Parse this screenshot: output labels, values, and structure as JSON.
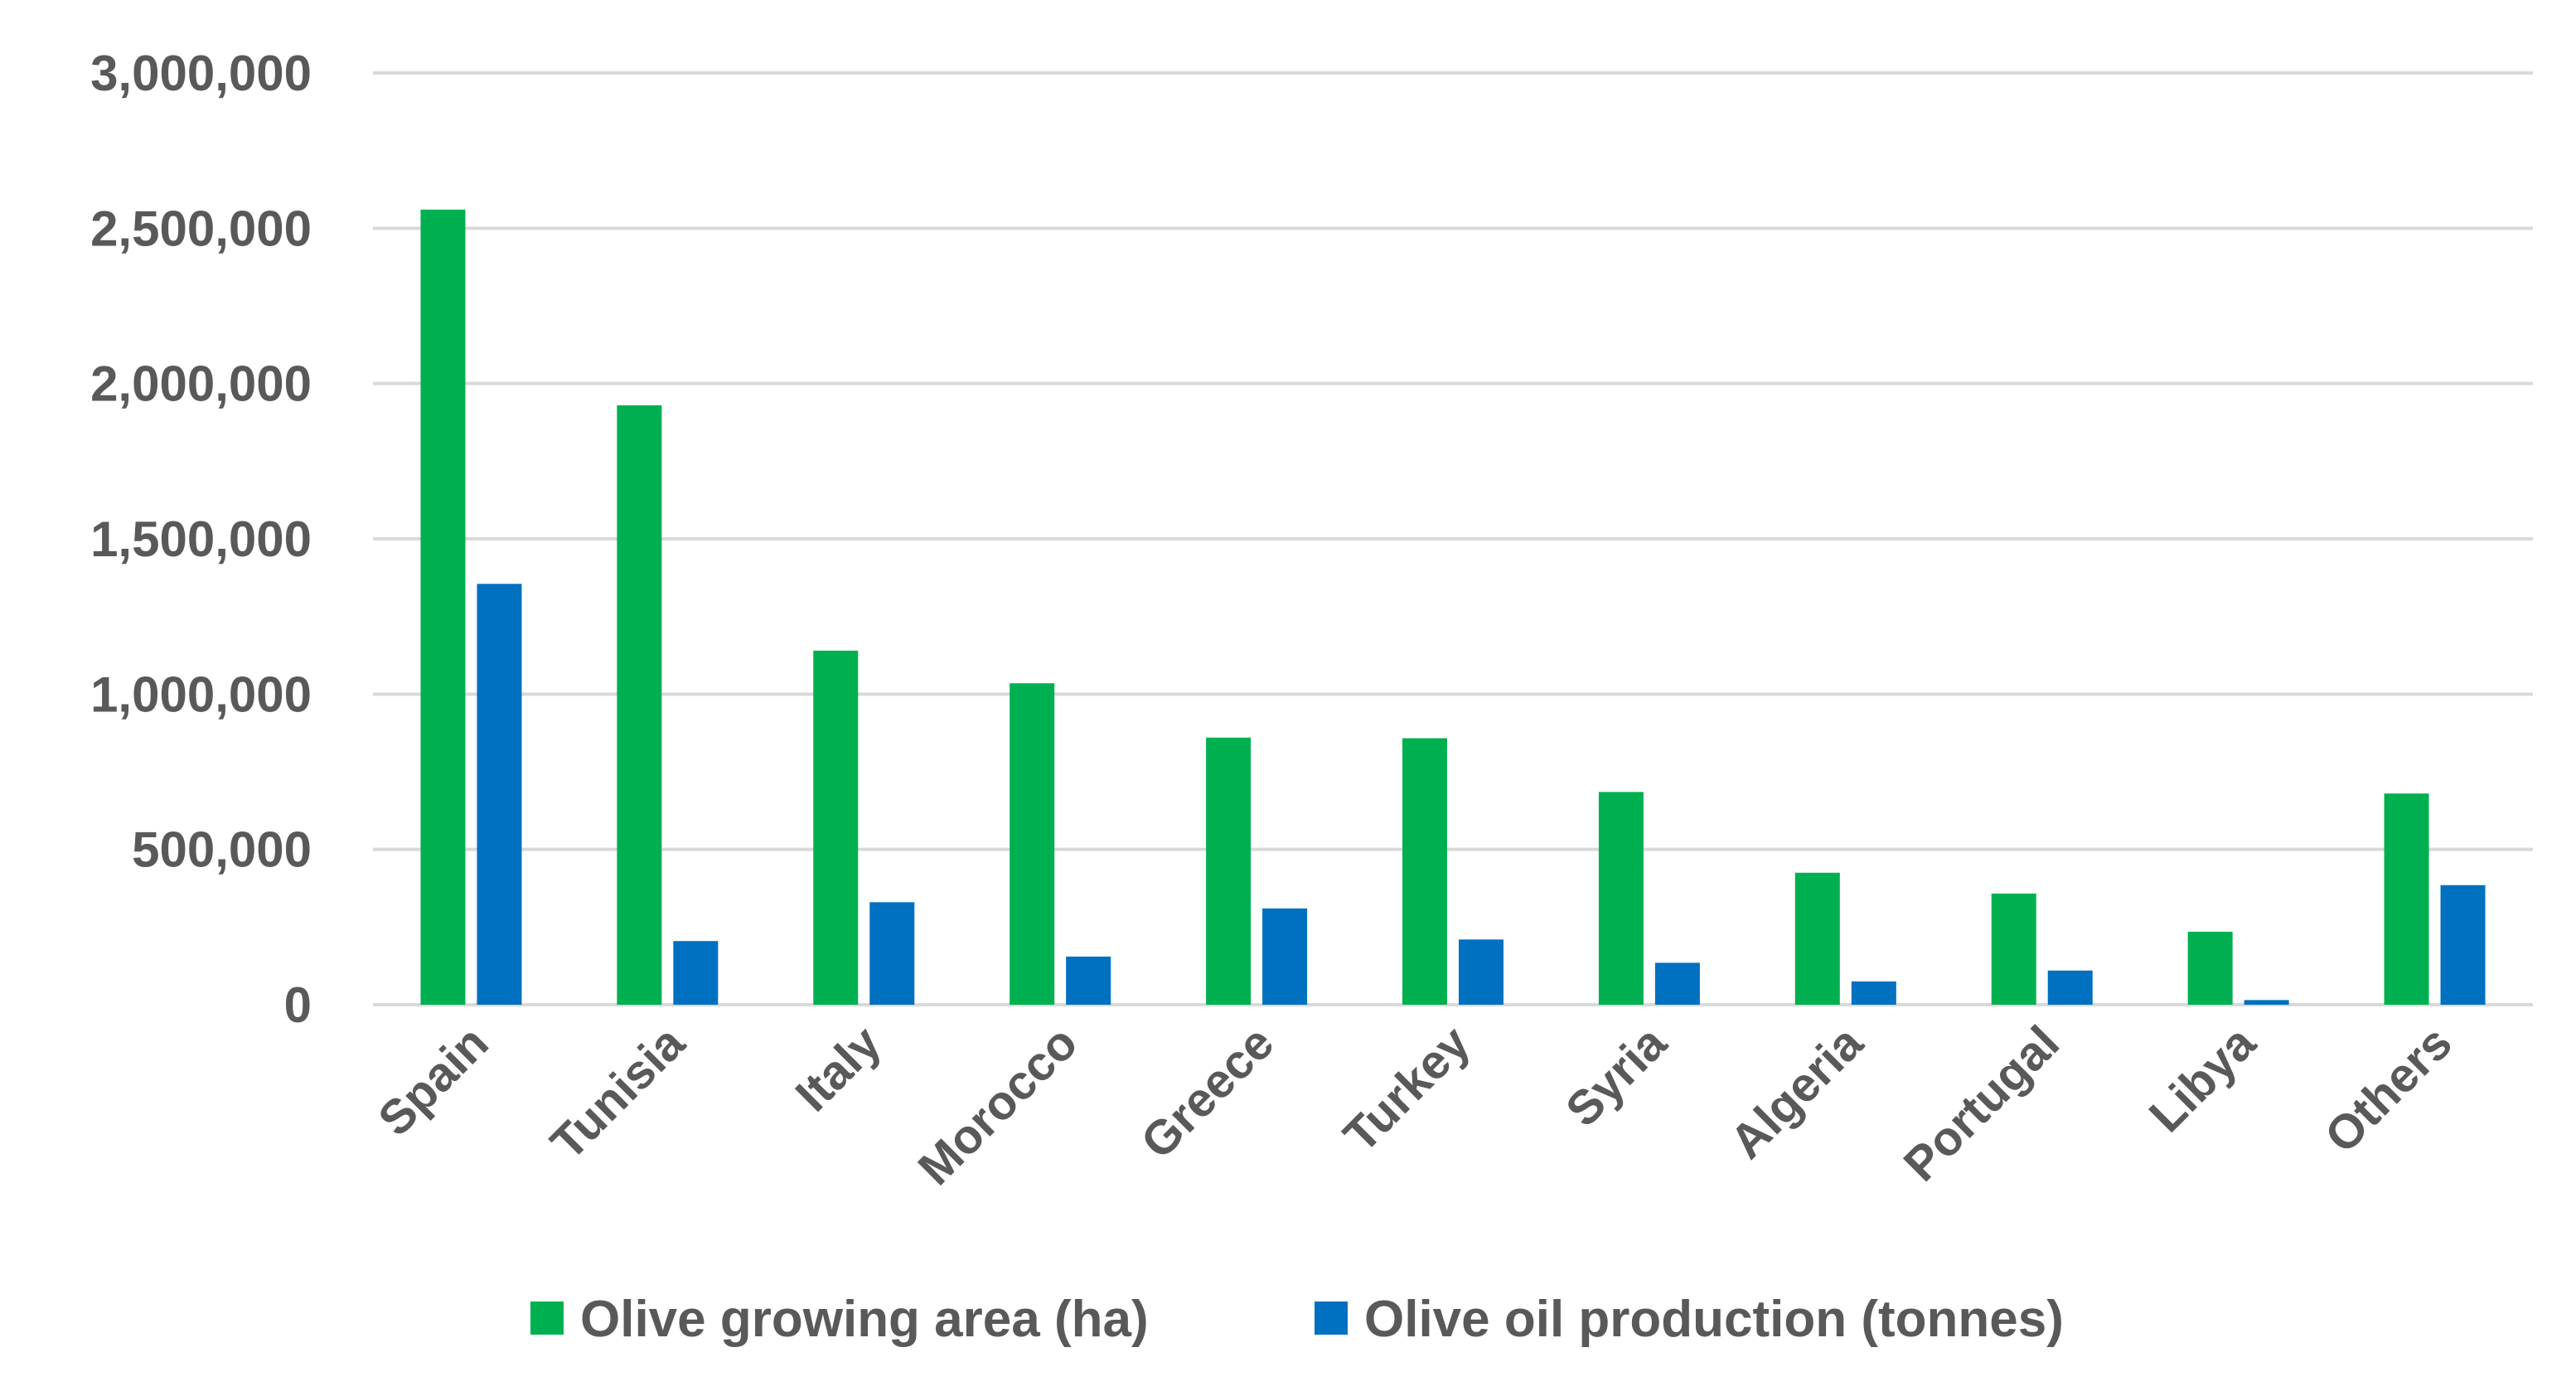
{
  "chart_data": {
    "type": "bar",
    "title": "",
    "xlabel": "",
    "ylabel": "",
    "ylim": [
      0,
      3000000
    ],
    "yticks": [
      0,
      500000,
      1000000,
      1500000,
      2000000,
      2500000,
      3000000
    ],
    "ytick_labels": [
      "0",
      "500,000",
      "1,000,000",
      "1,500,000",
      "2,000,000",
      "2,500,000",
      "3,000,000"
    ],
    "grid": true,
    "legend_position": "bottom",
    "categories": [
      "Spain",
      "Tunisia",
      "Italy",
      "Morocco",
      "Greece",
      "Turkey",
      "Syria",
      "Algeria",
      "Portugal",
      "Libya",
      "Others"
    ],
    "series": [
      {
        "name": "Olive growing area (ha)",
        "color": "#00b050",
        "values": [
          2560000,
          1930000,
          1140000,
          1035000,
          860000,
          858000,
          685000,
          425000,
          358000,
          235000,
          680000
        ]
      },
      {
        "name": "Olive oil production (tonnes)",
        "color": "#0070c0",
        "values": [
          1355000,
          205000,
          330000,
          155000,
          310000,
          210000,
          135000,
          75000,
          110000,
          15000,
          385000
        ]
      }
    ]
  }
}
